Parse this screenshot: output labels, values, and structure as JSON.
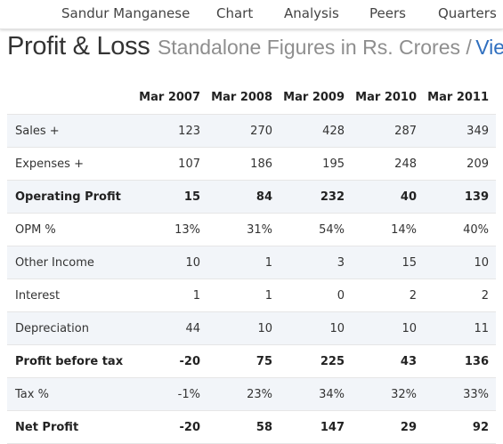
{
  "nav": {
    "items": [
      "Sandur Manganese",
      "Chart",
      "Analysis",
      "Peers",
      "Quarters"
    ]
  },
  "heading": {
    "title": "Profit & Loss",
    "subtitle": "Standalone Figures in Rs. Crores /",
    "view_link": "View"
  },
  "table": {
    "columns": [
      "Mar 2007",
      "Mar 2008",
      "Mar 2009",
      "Mar 2010",
      "Mar 2011"
    ],
    "rows": [
      {
        "label": "Sales +",
        "values": [
          "123",
          "270",
          "428",
          "287",
          "349"
        ]
      },
      {
        "label": "Expenses +",
        "values": [
          "107",
          "186",
          "195",
          "248",
          "209"
        ]
      },
      {
        "label": "Operating Profit",
        "values": [
          "15",
          "84",
          "232",
          "40",
          "139"
        ]
      },
      {
        "label": "OPM %",
        "values": [
          "13%",
          "31%",
          "54%",
          "14%",
          "40%"
        ]
      },
      {
        "label": "Other Income",
        "values": [
          "10",
          "1",
          "3",
          "15",
          "10"
        ]
      },
      {
        "label": "Interest",
        "values": [
          "1",
          "1",
          "0",
          "2",
          "2"
        ]
      },
      {
        "label": "Depreciation",
        "values": [
          "44",
          "10",
          "10",
          "10",
          "11"
        ]
      },
      {
        "label": "Profit before tax",
        "values": [
          "-20",
          "75",
          "225",
          "43",
          "136"
        ]
      },
      {
        "label": "Tax %",
        "values": [
          "-1%",
          "23%",
          "34%",
          "32%",
          "33%"
        ]
      },
      {
        "label": "Net Profit",
        "values": [
          "-20",
          "58",
          "147",
          "29",
          "92"
        ]
      }
    ]
  }
}
